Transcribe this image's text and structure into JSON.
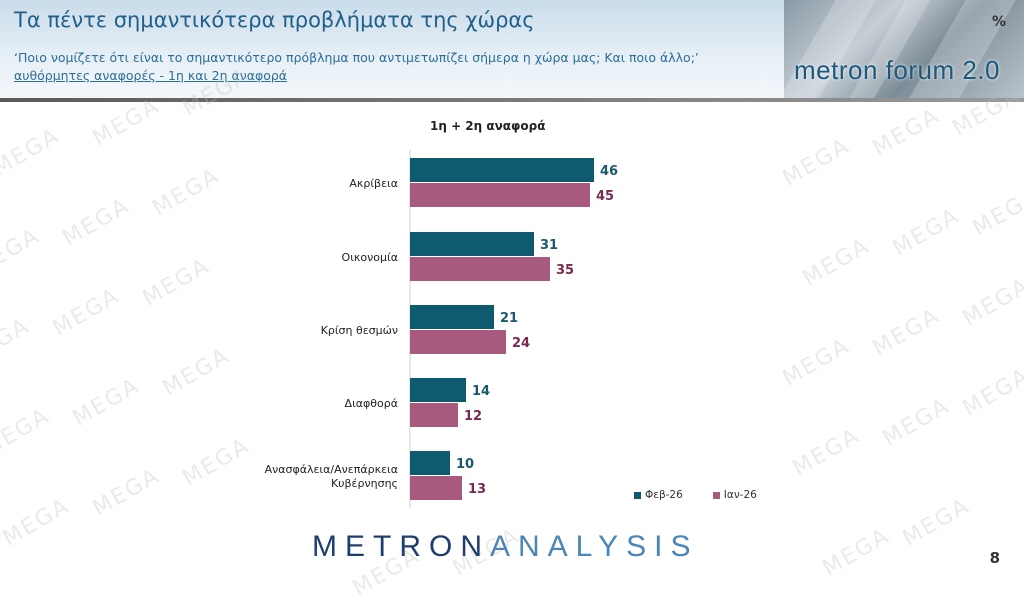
{
  "header": {
    "title": "Τα πέντε σημαντικότερα προβλήματα της χώρας",
    "subtitle_line1": "‘Ποιο νομίζετε ότι είναι το σημαντικότερο πρόβλημα που αντιμετωπίζει σήμερα η χώρα μας; Και ποιο άλλο;’",
    "subtitle_line2": "αυθόρμητες αναφορές - 1η και 2η αναφορά",
    "brand": "metron forum 2.0",
    "unit": "%"
  },
  "watermark_text": "MEGA",
  "chart_data": {
    "type": "bar",
    "orientation": "horizontal",
    "title": "1η + 2η αναφορά",
    "categories": [
      "Ακρίβεια",
      "Οικονομία",
      "Κρίση θεσμών",
      "Διαφθορά",
      "Ανασφάλεια/Ανεπάρκεια Κυβέρνησης"
    ],
    "series": [
      {
        "name": "Φεβ-26",
        "values": [
          46,
          31,
          21,
          14,
          10
        ],
        "color": "#0e5a6e"
      },
      {
        "name": "Ιαν-26",
        "values": [
          45,
          35,
          24,
          12,
          13
        ],
        "color": "#a85a7e"
      }
    ],
    "legend_position": "bottom-right",
    "label_colors": [
      "#1a5a6e",
      "#7a2a52"
    ],
    "grid": false
  },
  "footer": {
    "logo_part1": "METRON",
    "logo_part2": "ANALYSIS",
    "page_number": "8"
  }
}
